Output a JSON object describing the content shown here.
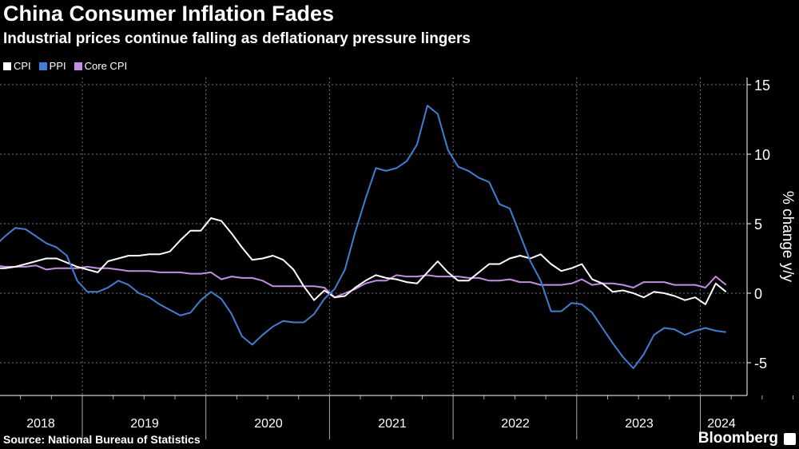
{
  "title": "China Consumer Inflation Fades",
  "subtitle": "Industrial prices continue falling as deflationary pressure lingers",
  "source": "Source: National Bureau of Statistics",
  "logo": "Bloomberg",
  "chart_data": {
    "type": "line",
    "xlabel": "",
    "ylabel": "% change y/y",
    "ylim": [
      -7.5,
      15.5
    ],
    "yticks": [
      15,
      10,
      5,
      0,
      -5
    ],
    "xtick_labels": [
      "2018",
      "2019",
      "2020",
      "2021",
      "2022",
      "2023",
      "2024"
    ],
    "grid": true,
    "legend_position": "top-left",
    "x_start": "2018-04",
    "x_end": "2024-03",
    "series": [
      {
        "name": "CPI",
        "color": "#ffffff",
        "values": [
          1.8,
          1.8,
          1.9,
          2.1,
          2.3,
          2.5,
          2.5,
          2.2,
          1.9,
          1.7,
          1.5,
          2.3,
          2.5,
          2.7,
          2.7,
          2.8,
          2.8,
          3.0,
          3.8,
          4.5,
          4.5,
          5.4,
          5.2,
          4.3,
          3.3,
          2.4,
          2.5,
          2.7,
          2.4,
          1.7,
          0.5,
          -0.5,
          0.2,
          -0.3,
          -0.2,
          0.4,
          0.9,
          1.3,
          1.1,
          1.0,
          0.8,
          0.7,
          1.5,
          2.3,
          1.5,
          0.9,
          0.9,
          1.5,
          2.1,
          2.1,
          2.5,
          2.7,
          2.5,
          2.8,
          2.1,
          1.6,
          1.8,
          2.1,
          1.0,
          0.7,
          0.1,
          0.2,
          0.0,
          -0.3,
          0.1,
          0.0,
          -0.2,
          -0.5,
          -0.3,
          -0.8,
          0.7,
          0.1
        ]
      },
      {
        "name": "PPI",
        "color": "#3d7fd6",
        "values": [
          3.4,
          4.1,
          4.7,
          4.6,
          4.1,
          3.6,
          3.3,
          2.7,
          0.9,
          0.1,
          0.1,
          0.4,
          0.9,
          0.6,
          0.0,
          -0.3,
          -0.8,
          -1.2,
          -1.6,
          -1.4,
          -0.5,
          0.1,
          -0.4,
          -1.5,
          -3.1,
          -3.7,
          -3.0,
          -2.4,
          -2.0,
          -2.1,
          -2.1,
          -1.5,
          -0.4,
          0.3,
          1.7,
          4.4,
          6.8,
          9.0,
          8.8,
          9.0,
          9.5,
          10.7,
          13.5,
          12.9,
          10.3,
          9.1,
          8.8,
          8.3,
          8.0,
          6.4,
          6.1,
          4.2,
          2.3,
          0.9,
          -1.3,
          -1.3,
          -0.7,
          -0.8,
          -1.4,
          -2.5,
          -3.6,
          -4.6,
          -5.4,
          -4.4,
          -3.0,
          -2.5,
          -2.6,
          -3.0,
          -2.7,
          -2.5,
          -2.7,
          -2.8
        ]
      },
      {
        "name": "Core CPI",
        "color": "#c58be8",
        "values": [
          2.0,
          1.9,
          1.9,
          1.9,
          2.0,
          1.7,
          1.8,
          1.8,
          1.8,
          1.9,
          1.8,
          1.8,
          1.7,
          1.6,
          1.6,
          1.6,
          1.5,
          1.5,
          1.5,
          1.4,
          1.4,
          1.5,
          1.0,
          1.2,
          1.1,
          1.1,
          0.9,
          0.5,
          0.5,
          0.5,
          0.5,
          0.5,
          0.4,
          -0.3,
          0.0,
          0.3,
          0.7,
          0.9,
          0.9,
          1.3,
          1.2,
          1.2,
          1.3,
          1.2,
          1.2,
          1.2,
          1.1,
          1.1,
          0.9,
          0.9,
          1.0,
          0.8,
          0.8,
          0.6,
          0.6,
          0.6,
          0.7,
          1.0,
          0.6,
          0.7,
          0.7,
          0.6,
          0.4,
          0.8,
          0.8,
          0.8,
          0.6,
          0.6,
          0.6,
          0.4,
          1.2,
          0.6
        ]
      }
    ]
  }
}
